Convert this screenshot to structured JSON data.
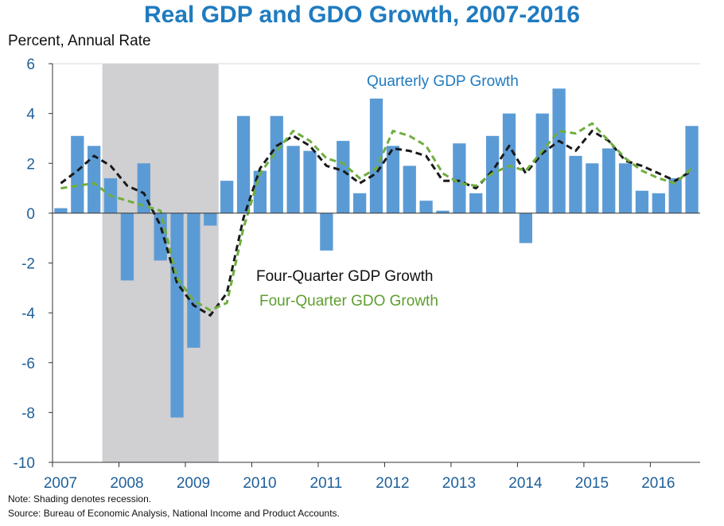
{
  "title": "Real GDP and GDO Growth, 2007-2016",
  "unit_label": "Percent, Annual Rate",
  "note": "Note: Shading denotes recession.",
  "source": "Source: Bureau of Economic Analysis, National Income and Product Accounts.",
  "colors": {
    "title": "#1F7BC0",
    "bars": "#5B9BD5",
    "gdp_line": "#1A1A1A",
    "gdo_line": "#6FAE3F",
    "recession": "#D0CFD1",
    "tick_labels": "#1F5F99"
  },
  "chart_data": {
    "type": "bar",
    "ylim": [
      -10,
      6
    ],
    "y_ticks": [
      6,
      4,
      2,
      0,
      -2,
      -4,
      -6,
      -8,
      -10
    ],
    "x_tick_labels": [
      "2007",
      "2008",
      "2009",
      "2010",
      "2011",
      "2012",
      "2013",
      "2014",
      "2015",
      "2016"
    ],
    "grid": false,
    "recession": {
      "start": "2007Q4",
      "end": "2009Q2"
    },
    "categories": [
      "2007Q1",
      "2007Q2",
      "2007Q3",
      "2007Q4",
      "2008Q1",
      "2008Q2",
      "2008Q3",
      "2008Q4",
      "2009Q1",
      "2009Q2",
      "2009Q3",
      "2009Q4",
      "2010Q1",
      "2010Q2",
      "2010Q3",
      "2010Q4",
      "2011Q1",
      "2011Q2",
      "2011Q3",
      "2011Q4",
      "2012Q1",
      "2012Q2",
      "2012Q3",
      "2012Q4",
      "2013Q1",
      "2013Q2",
      "2013Q3",
      "2013Q4",
      "2014Q1",
      "2014Q2",
      "2014Q3",
      "2014Q4",
      "2015Q1",
      "2015Q2",
      "2015Q3",
      "2015Q4",
      "2016Q1",
      "2016Q2",
      "2016Q3"
    ],
    "series": [
      {
        "name": "Quarterly GDP Growth",
        "kind": "bar",
        "values": [
          0.2,
          3.1,
          2.7,
          1.4,
          -2.7,
          2.0,
          -1.9,
          -8.2,
          -5.4,
          -0.5,
          1.3,
          3.9,
          1.7,
          3.9,
          2.7,
          2.5,
          -1.5,
          2.9,
          0.8,
          4.6,
          2.7,
          1.9,
          0.5,
          0.1,
          2.8,
          0.8,
          3.1,
          4.0,
          -1.2,
          4.0,
          5.0,
          2.3,
          2.0,
          2.6,
          2.0,
          0.9,
          0.8,
          1.4,
          3.5
        ]
      },
      {
        "name": "Four-Quarter GDP Growth",
        "kind": "line",
        "style": "dashed",
        "values": [
          1.2,
          1.7,
          2.3,
          1.9,
          1.1,
          0.8,
          -0.5,
          -2.8,
          -3.7,
          -4.1,
          -3.2,
          -0.2,
          1.8,
          2.7,
          3.1,
          2.7,
          1.9,
          1.7,
          1.2,
          1.6,
          2.6,
          2.5,
          2.3,
          1.3,
          1.3,
          1.0,
          1.7,
          2.7,
          1.6,
          2.4,
          2.9,
          2.5,
          3.3,
          2.9,
          2.1,
          1.9,
          1.6,
          1.3,
          1.7
        ]
      },
      {
        "name": "Four-Quarter GDO Growth",
        "kind": "line",
        "style": "dashed",
        "values": [
          1.0,
          1.1,
          1.2,
          0.7,
          0.5,
          0.3,
          0.1,
          -2.6,
          -3.5,
          -3.9,
          -3.6,
          -0.6,
          1.6,
          2.5,
          3.3,
          2.9,
          2.2,
          2.0,
          1.4,
          1.8,
          3.3,
          3.1,
          2.7,
          1.6,
          1.2,
          1.1,
          1.6,
          1.9,
          1.7,
          2.5,
          3.3,
          3.2,
          3.6,
          2.9,
          2.2,
          1.7,
          1.4,
          1.2,
          1.8
        ]
      }
    ],
    "annotations": [
      {
        "text": "Quarterly GDP Growth",
        "series": "Quarterly GDP Growth"
      },
      {
        "text": "Four-Quarter GDP Growth",
        "series": "Four-Quarter GDP Growth"
      },
      {
        "text": "Four-Quarter GDO Growth",
        "series": "Four-Quarter GDO Growth"
      }
    ]
  }
}
